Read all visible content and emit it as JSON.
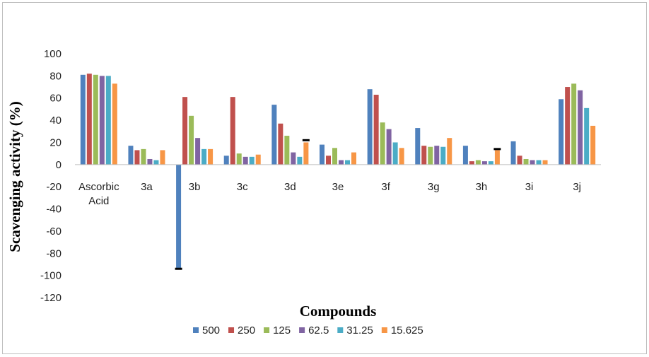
{
  "chart_data": {
    "type": "bar",
    "xlabel": "Compounds",
    "ylabel": "Scavenging activity (%)",
    "ylim": [
      -120,
      100
    ],
    "yticks": [
      100,
      80,
      60,
      40,
      20,
      0,
      -20,
      -40,
      -60,
      -80,
      -100,
      -120
    ],
    "categories": [
      "Ascorbic Acid",
      "3a",
      "3b",
      "3c",
      "3d",
      "3e",
      "3f",
      "3g",
      "3h",
      "3i",
      "3j"
    ],
    "category_lines": [
      [
        "Ascorbic",
        "Acid"
      ],
      [
        "3a"
      ],
      [
        "3b"
      ],
      [
        "3c"
      ],
      [
        "3d"
      ],
      [
        "3e"
      ],
      [
        "3f"
      ],
      [
        "3g"
      ],
      [
        "3h"
      ],
      [
        "3i"
      ],
      [
        "3j"
      ]
    ],
    "legend_position": "bottom",
    "grid": false,
    "series": [
      {
        "name": "500",
        "color": "#4F81BD",
        "values": [
          81,
          17,
          -94,
          8,
          54,
          18,
          68,
          33,
          17,
          21,
          59
        ]
      },
      {
        "name": "250",
        "color": "#C0504D",
        "values": [
          82,
          13,
          61,
          61,
          37,
          8,
          63,
          17,
          3,
          8,
          70
        ]
      },
      {
        "name": "125",
        "color": "#9BBB59",
        "values": [
          81,
          14,
          44,
          10,
          26,
          15,
          38,
          16,
          4,
          5,
          73
        ]
      },
      {
        "name": "62.5",
        "color": "#8064A2",
        "values": [
          80,
          5,
          24,
          7,
          11,
          4,
          32,
          17,
          3,
          4,
          67
        ]
      },
      {
        "name": "31.25",
        "color": "#4BACC6",
        "values": [
          80,
          4,
          14,
          7,
          7,
          4,
          20,
          16,
          3,
          4,
          51
        ]
      },
      {
        "name": "15.625",
        "color": "#F79646",
        "values": [
          73,
          13,
          14,
          9,
          20,
          11,
          15,
          24,
          13,
          4,
          35
        ]
      }
    ],
    "error_marks": [
      {
        "category": "3b",
        "series": "500",
        "value": -94
      },
      {
        "category": "3d",
        "series": "15.625",
        "value": 22
      },
      {
        "category": "3h",
        "series": "15.625",
        "value": 14
      }
    ]
  }
}
